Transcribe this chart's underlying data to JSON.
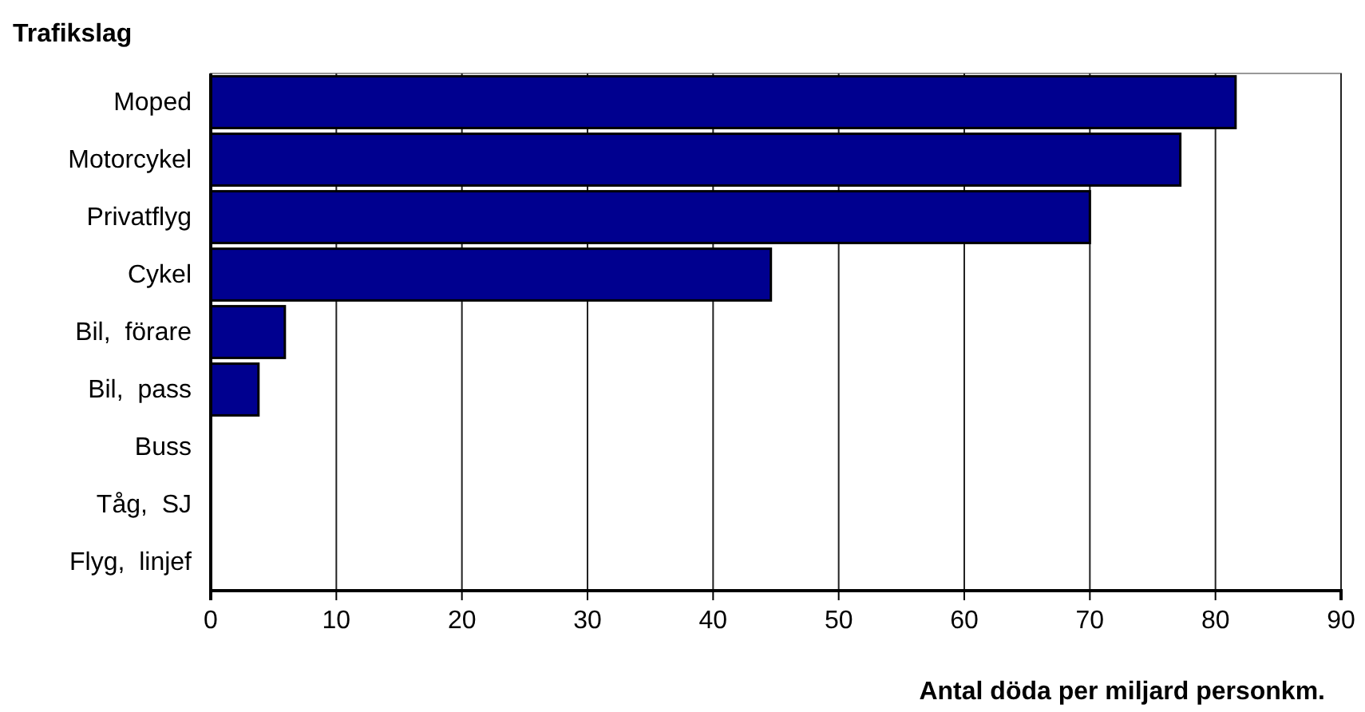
{
  "chart_data": {
    "type": "bar",
    "orientation": "horizontal",
    "title": "Trafikslag",
    "xlabel": "Antal döda per miljard personkm.",
    "categories": [
      "Moped",
      "Motorcykel",
      "Privatflyg",
      "Cykel",
      "Bil,  förare",
      "Bil,  pass",
      "Buss",
      "Tåg,  SJ",
      "Flyg,  linjef"
    ],
    "values": [
      81.6,
      77.2,
      70,
      44.6,
      5.9,
      3.8,
      0,
      0,
      0
    ],
    "color": "#00008f",
    "xlim": [
      0,
      90
    ],
    "xticks": [
      0,
      10,
      20,
      30,
      40,
      50,
      60,
      70,
      80,
      90
    ],
    "grid": "x"
  }
}
